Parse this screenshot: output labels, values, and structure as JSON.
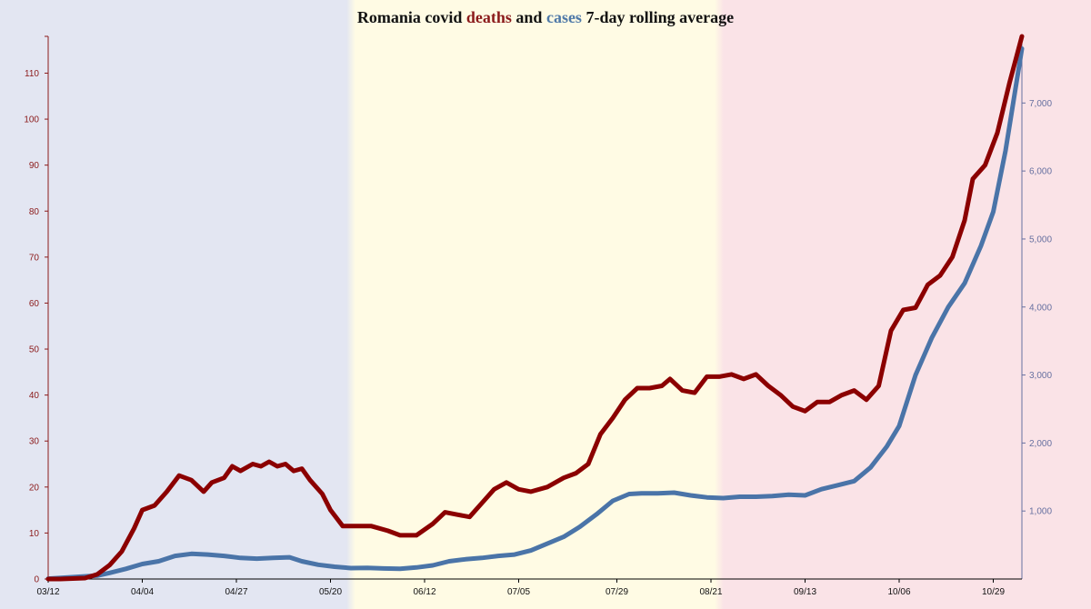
{
  "title": {
    "part1": "Romania covid ",
    "part2": "deaths",
    "part3": " and ",
    "part4": "cases",
    "part5": " 7-day rolling average"
  },
  "colors": {
    "deaths": "#8b0000",
    "cases": "#4a74a8",
    "period1_bg": "#e3e6f2",
    "period2_bg": "#fffbe4",
    "period3_bg": "#fae3e7",
    "left_axis": "#8b1a1a",
    "right_axis": "#6670a0",
    "bottom_axis": "#000000"
  },
  "chart_data": {
    "type": "line",
    "title": "Romania covid deaths and cases 7-day rolling average",
    "x_type": "date",
    "x_start": "2020-03-12",
    "x_end": "2020-11-05",
    "x_tick_labels": [
      "03/12",
      "04/04",
      "04/27",
      "05/20",
      "06/12",
      "07/05",
      "07/29",
      "08/21",
      "09/13",
      "10/06",
      "10/29"
    ],
    "x_tick_dates": [
      "2020-03-12",
      "2020-04-04",
      "2020-04-27",
      "2020-05-20",
      "2020-06-12",
      "2020-07-05",
      "2020-07-29",
      "2020-08-21",
      "2020-09-13",
      "2020-10-06",
      "2020-10-29"
    ],
    "y_left": {
      "range": [
        0,
        118
      ],
      "ticks": [
        0,
        10,
        20,
        30,
        40,
        50,
        60,
        70,
        80,
        90,
        100,
        110
      ],
      "tick_labels": [
        "0",
        "10",
        "20",
        "30",
        "40",
        "50",
        "60",
        "70",
        "80",
        "90",
        "100",
        "110"
      ]
    },
    "y_right": {
      "range": [
        0,
        7980
      ],
      "ticks": [
        1000,
        2000,
        3000,
        4000,
        5000,
        6000,
        7000
      ],
      "tick_labels": [
        "1,000",
        "2,000",
        "3,000",
        "4,000",
        "5,000",
        "6,000",
        "7,000"
      ]
    },
    "background_periods": [
      {
        "start": "2020-03-12",
        "end": "2020-05-25"
      },
      {
        "start": "2020-05-25",
        "end": "2020-08-23"
      },
      {
        "start": "2020-08-23",
        "end": "2020-11-05"
      }
    ],
    "series": [
      {
        "name": "deaths",
        "axis": "left",
        "points": [
          [
            "2020-03-12",
            0
          ],
          [
            "2020-03-15",
            0
          ],
          [
            "2020-03-18",
            0.1
          ],
          [
            "2020-03-21",
            0.2
          ],
          [
            "2020-03-24",
            1
          ],
          [
            "2020-03-27",
            3
          ],
          [
            "2020-03-30",
            6
          ],
          [
            "2020-04-02",
            11
          ],
          [
            "2020-04-04",
            15
          ],
          [
            "2020-04-07",
            16
          ],
          [
            "2020-04-10",
            19
          ],
          [
            "2020-04-13",
            22.5
          ],
          [
            "2020-04-16",
            21.5
          ],
          [
            "2020-04-19",
            19
          ],
          [
            "2020-04-21",
            21
          ],
          [
            "2020-04-24",
            22
          ],
          [
            "2020-04-26",
            24.5
          ],
          [
            "2020-04-28",
            23.5
          ],
          [
            "2020-05-01",
            25
          ],
          [
            "2020-05-03",
            24.5
          ],
          [
            "2020-05-05",
            25.5
          ],
          [
            "2020-05-07",
            24.5
          ],
          [
            "2020-05-09",
            25
          ],
          [
            "2020-05-11",
            23.5
          ],
          [
            "2020-05-13",
            24
          ],
          [
            "2020-05-15",
            21.5
          ],
          [
            "2020-05-18",
            18.5
          ],
          [
            "2020-05-20",
            15
          ],
          [
            "2020-05-23",
            11.5
          ],
          [
            "2020-05-26",
            11.5
          ],
          [
            "2020-05-30",
            11.5
          ],
          [
            "2020-06-03",
            10.5
          ],
          [
            "2020-06-06",
            9.5
          ],
          [
            "2020-06-10",
            9.5
          ],
          [
            "2020-06-14",
            12
          ],
          [
            "2020-06-17",
            14.5
          ],
          [
            "2020-06-20",
            14
          ],
          [
            "2020-06-23",
            13.5
          ],
          [
            "2020-06-26",
            16.5
          ],
          [
            "2020-06-29",
            19.5
          ],
          [
            "2020-07-02",
            21
          ],
          [
            "2020-07-05",
            19.5
          ],
          [
            "2020-07-08",
            19
          ],
          [
            "2020-07-12",
            20
          ],
          [
            "2020-07-16",
            22
          ],
          [
            "2020-07-19",
            23
          ],
          [
            "2020-07-22",
            25
          ],
          [
            "2020-07-25",
            31.5
          ],
          [
            "2020-07-28",
            35
          ],
          [
            "2020-07-31",
            39
          ],
          [
            "2020-08-03",
            41.5
          ],
          [
            "2020-08-06",
            41.5
          ],
          [
            "2020-08-09",
            42
          ],
          [
            "2020-08-11",
            43.5
          ],
          [
            "2020-08-14",
            41
          ],
          [
            "2020-08-17",
            40.5
          ],
          [
            "2020-08-20",
            44
          ],
          [
            "2020-08-23",
            44
          ],
          [
            "2020-08-26",
            44.5
          ],
          [
            "2020-08-29",
            43.5
          ],
          [
            "2020-09-01",
            44.5
          ],
          [
            "2020-09-04",
            42
          ],
          [
            "2020-09-07",
            40
          ],
          [
            "2020-09-10",
            37.5
          ],
          [
            "2020-09-13",
            36.5
          ],
          [
            "2020-09-16",
            38.5
          ],
          [
            "2020-09-19",
            38.5
          ],
          [
            "2020-09-22",
            40
          ],
          [
            "2020-09-25",
            41
          ],
          [
            "2020-09-28",
            39
          ],
          [
            "2020-10-01",
            42
          ],
          [
            "2020-10-04",
            54
          ],
          [
            "2020-10-07",
            58.5
          ],
          [
            "2020-10-10",
            59
          ],
          [
            "2020-10-13",
            64
          ],
          [
            "2020-10-16",
            66
          ],
          [
            "2020-10-19",
            70
          ],
          [
            "2020-10-22",
            78
          ],
          [
            "2020-10-24",
            87
          ],
          [
            "2020-10-27",
            90
          ],
          [
            "2020-10-30",
            97
          ],
          [
            "2020-11-02",
            108
          ],
          [
            "2020-11-05",
            118
          ]
        ]
      },
      {
        "name": "cases",
        "axis": "right",
        "points": [
          [
            "2020-03-12",
            5
          ],
          [
            "2020-03-16",
            20
          ],
          [
            "2020-03-20",
            35
          ],
          [
            "2020-03-24",
            50
          ],
          [
            "2020-03-27",
            90
          ],
          [
            "2020-03-31",
            150
          ],
          [
            "2020-04-04",
            220
          ],
          [
            "2020-04-08",
            260
          ],
          [
            "2020-04-12",
            340
          ],
          [
            "2020-04-16",
            370
          ],
          [
            "2020-04-20",
            360
          ],
          [
            "2020-04-24",
            340
          ],
          [
            "2020-04-28",
            310
          ],
          [
            "2020-05-02",
            300
          ],
          [
            "2020-05-06",
            310
          ],
          [
            "2020-05-10",
            320
          ],
          [
            "2020-05-13",
            260
          ],
          [
            "2020-05-17",
            210
          ],
          [
            "2020-05-21",
            180
          ],
          [
            "2020-05-25",
            160
          ],
          [
            "2020-05-29",
            165
          ],
          [
            "2020-06-02",
            155
          ],
          [
            "2020-06-06",
            150
          ],
          [
            "2020-06-10",
            170
          ],
          [
            "2020-06-14",
            200
          ],
          [
            "2020-06-18",
            260
          ],
          [
            "2020-06-22",
            290
          ],
          [
            "2020-06-26",
            310
          ],
          [
            "2020-06-30",
            340
          ],
          [
            "2020-07-04",
            360
          ],
          [
            "2020-07-08",
            420
          ],
          [
            "2020-07-12",
            520
          ],
          [
            "2020-07-16",
            620
          ],
          [
            "2020-07-20",
            770
          ],
          [
            "2020-07-24",
            950
          ],
          [
            "2020-07-28",
            1150
          ],
          [
            "2020-08-01",
            1250
          ],
          [
            "2020-08-04",
            1260
          ],
          [
            "2020-08-08",
            1260
          ],
          [
            "2020-08-12",
            1270
          ],
          [
            "2020-08-16",
            1230
          ],
          [
            "2020-08-20",
            1200
          ],
          [
            "2020-08-24",
            1190
          ],
          [
            "2020-08-28",
            1210
          ],
          [
            "2020-09-01",
            1210
          ],
          [
            "2020-09-05",
            1220
          ],
          [
            "2020-09-09",
            1240
          ],
          [
            "2020-09-13",
            1230
          ],
          [
            "2020-09-17",
            1320
          ],
          [
            "2020-09-21",
            1380
          ],
          [
            "2020-09-25",
            1440
          ],
          [
            "2020-09-29",
            1640
          ],
          [
            "2020-10-03",
            1950
          ],
          [
            "2020-10-06",
            2250
          ],
          [
            "2020-10-10",
            3000
          ],
          [
            "2020-10-14",
            3550
          ],
          [
            "2020-10-18",
            4000
          ],
          [
            "2020-10-22",
            4350
          ],
          [
            "2020-10-26",
            4900
          ],
          [
            "2020-10-29",
            5400
          ],
          [
            "2020-11-01",
            6300
          ],
          [
            "2020-11-05",
            7800
          ]
        ]
      }
    ]
  }
}
